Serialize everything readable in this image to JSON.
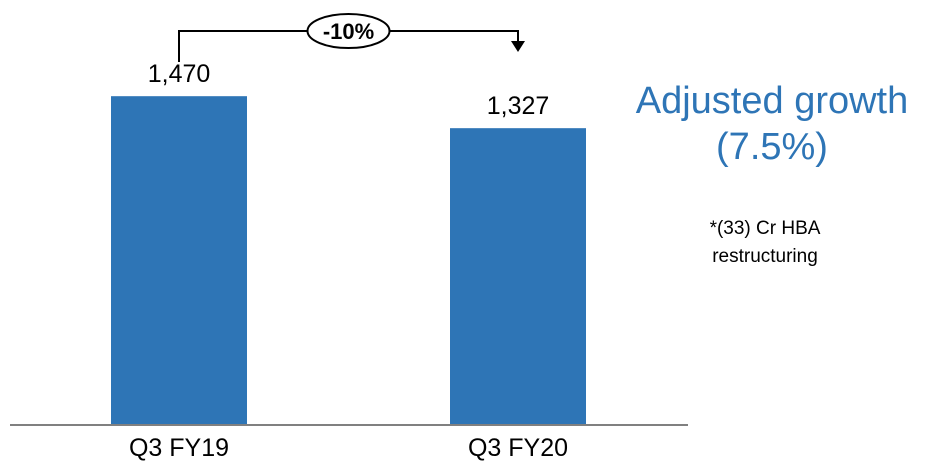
{
  "chart_data": {
    "type": "bar",
    "categories": [
      "Q3 FY19",
      "Q3 FY20"
    ],
    "values": [
      1470,
      1327
    ],
    "data_labels": [
      "1,470",
      "1,327"
    ],
    "ylim": [
      0,
      1900
    ],
    "grid": false,
    "legend": "none",
    "bar_color": "#2e75b6",
    "annotation": {
      "text": "-10%",
      "from": "Q3 FY19",
      "to": "Q3 FY20"
    }
  },
  "side_text": {
    "headline_line1": "Adjusted growth",
    "headline_line2": "(7.5%)",
    "note_line1": "*(33) Cr HBA",
    "note_line2": "restructuring",
    "headline_color": "#2e75b6"
  }
}
